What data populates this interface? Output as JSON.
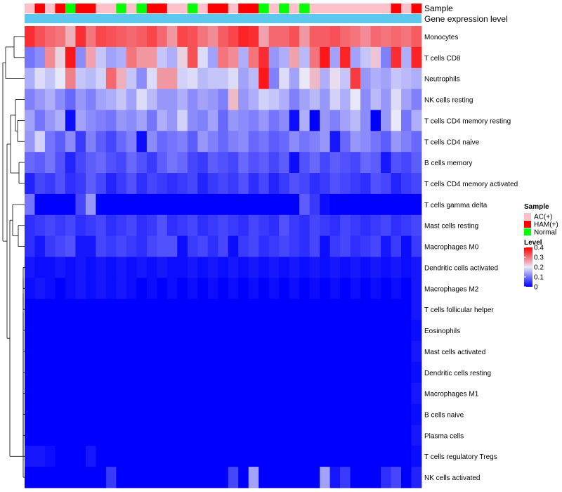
{
  "chart_data": {
    "type": "heatmap",
    "title": "",
    "annotation_tracks": [
      "Sample",
      "Gene expression level"
    ],
    "sample_groups": [
      "AC",
      "HAM",
      "AC",
      "HAM",
      "Normal",
      "HAM",
      "HAM",
      "AC",
      "AC",
      "Normal",
      "AC",
      "Normal",
      "HAM",
      "HAM",
      "AC",
      "AC",
      "Normal",
      "AC",
      "HAM",
      "HAM",
      "AC",
      "HAM",
      "HAM",
      "Normal",
      "AC",
      "Normal",
      "AC",
      "Normal",
      "AC",
      "AC",
      "AC",
      "AC",
      "AC",
      "AC",
      "AC",
      "AC",
      "HAM",
      "AC",
      "HAM"
    ],
    "rows": [
      "Monocytes",
      "T cells CD8",
      "Neutrophils",
      "NK cells resting",
      "T cells CD4 memory resting",
      "T cells CD4 naive",
      "B cells memory",
      "T cells CD4 memory activated",
      "T cells gamma delta",
      "Mast cells resting",
      "Macrophages M0",
      "Dendritic cells activated",
      "Macrophages M2",
      "T cells follicular helper",
      "Eosinophils",
      "Mast cells activated",
      "Dendritic cells resting",
      "Macrophages M1",
      "B cells naive",
      "Plasma cells",
      "T cells regulatory  Tregs",
      "NK cells activated"
    ],
    "values": [
      [
        0.36,
        0.33,
        0.31,
        0.3,
        0.25,
        0.36,
        0.3,
        0.34,
        0.33,
        0.32,
        0.31,
        0.32,
        0.34,
        0.31,
        0.27,
        0.34,
        0.33,
        0.3,
        0.28,
        0.32,
        0.34,
        0.37,
        0.36,
        0.26,
        0.31,
        0.31,
        0.33,
        0.27,
        0.32,
        0.32,
        0.33,
        0.31,
        0.3,
        0.28,
        0.31,
        0.3,
        0.31,
        0.3,
        0.32
      ],
      [
        0.1,
        0.12,
        0.28,
        0.22,
        0.38,
        0.12,
        0.26,
        0.17,
        0.14,
        0.15,
        0.3,
        0.27,
        0.27,
        0.17,
        0.15,
        0.22,
        0.33,
        0.19,
        0.14,
        0.3,
        0.28,
        0.15,
        0.3,
        0.36,
        0.13,
        0.15,
        0.26,
        0.16,
        0.3,
        0.38,
        0.14,
        0.37,
        0.14,
        0.17,
        0.23,
        0.11,
        0.36,
        0.15,
        0.37
      ],
      [
        0.15,
        0.19,
        0.17,
        0.2,
        0.29,
        0.17,
        0.16,
        0.18,
        0.31,
        0.25,
        0.17,
        0.12,
        0.19,
        0.27,
        0.27,
        0.18,
        0.19,
        0.16,
        0.17,
        0.17,
        0.19,
        0.14,
        0.16,
        0.38,
        0.11,
        0.19,
        0.14,
        0.2,
        0.24,
        0.15,
        0.21,
        0.17,
        0.35,
        0.13,
        0.15,
        0.14,
        0.17,
        0.16,
        0.15
      ],
      [
        0.11,
        0.13,
        0.15,
        0.12,
        0.09,
        0.13,
        0.11,
        0.14,
        0.15,
        0.17,
        0.14,
        0.19,
        0.16,
        0.13,
        0.13,
        0.15,
        0.12,
        0.14,
        0.13,
        0.11,
        0.24,
        0.13,
        0.15,
        0.18,
        0.17,
        0.15,
        0.11,
        0.14,
        0.16,
        0.13,
        0.18,
        0.15,
        0.2,
        0.12,
        0.16,
        0.13,
        0.19,
        0.14,
        0.11
      ],
      [
        0.14,
        0.1,
        0.13,
        0.15,
        0.01,
        0.14,
        0.12,
        0.11,
        0.1,
        0.13,
        0.12,
        0.14,
        0.1,
        0.15,
        0.13,
        0.18,
        0.12,
        0.11,
        0.14,
        0.09,
        0.13,
        0.12,
        0.11,
        0.13,
        0.1,
        0.12,
        0.01,
        0.15,
        0.0,
        0.13,
        0.11,
        0.14,
        0.16,
        0.12,
        0.0,
        0.13,
        0.2,
        0.1,
        0.15
      ],
      [
        0.13,
        0.18,
        0.1,
        0.08,
        0.12,
        0.05,
        0.11,
        0.08,
        0.06,
        0.09,
        0.11,
        0.01,
        0.12,
        0.09,
        0.1,
        0.11,
        0.08,
        0.13,
        0.11,
        0.09,
        0.11,
        0.12,
        0.09,
        0.1,
        0.08,
        0.09,
        0.12,
        0.1,
        0.11,
        0.13,
        0.02,
        0.09,
        0.13,
        0.12,
        0.1,
        0.08,
        0.13,
        0.11,
        0.09
      ],
      [
        0.09,
        0.08,
        0.1,
        0.07,
        0.03,
        0.06,
        0.08,
        0.09,
        0.07,
        0.06,
        0.09,
        0.07,
        0.05,
        0.08,
        0.1,
        0.09,
        0.06,
        0.05,
        0.08,
        0.07,
        0.06,
        0.09,
        0.07,
        0.08,
        0.06,
        0.08,
        0.01,
        0.07,
        0.09,
        0.06,
        0.08,
        0.07,
        0.06,
        0.09,
        0.08,
        0.02,
        0.07,
        0.06,
        0.08
      ],
      [
        0.03,
        0.06,
        0.05,
        0.07,
        0.04,
        0.05,
        0.08,
        0.06,
        0.03,
        0.05,
        0.07,
        0.04,
        0.06,
        0.05,
        0.04,
        0.05,
        0.06,
        0.03,
        0.05,
        0.06,
        0.05,
        0.07,
        0.04,
        0.06,
        0.03,
        0.05,
        0.07,
        0.06,
        0.04,
        0.05,
        0.07,
        0.06,
        0.05,
        0.04,
        0.07,
        0.06,
        0.03,
        0.05,
        0.06
      ],
      [
        0.1,
        0.0,
        0.0,
        0.0,
        0.0,
        0.06,
        0.13,
        0.0,
        0.0,
        0.0,
        0.0,
        0.0,
        0.0,
        0.0,
        0.0,
        0.0,
        0.0,
        0.0,
        0.0,
        0.0,
        0.0,
        0.0,
        0.0,
        0.0,
        0.0,
        0.0,
        0.0,
        0.08,
        0.05,
        0.01,
        0.0,
        0.0,
        0.0,
        0.0,
        0.0,
        0.0,
        0.0,
        0.0,
        0.0
      ],
      [
        0.04,
        0.05,
        0.06,
        0.05,
        0.06,
        0.04,
        0.05,
        0.06,
        0.04,
        0.05,
        0.06,
        0.04,
        0.05,
        0.07,
        0.04,
        0.05,
        0.06,
        0.04,
        0.05,
        0.06,
        0.05,
        0.04,
        0.06,
        0.05,
        0.04,
        0.07,
        0.05,
        0.04,
        0.06,
        0.05,
        0.04,
        0.06,
        0.05,
        0.04,
        0.05,
        0.06,
        0.04,
        0.05,
        0.06
      ],
      [
        0.04,
        0.02,
        0.05,
        0.06,
        0.07,
        0.02,
        0.02,
        0.06,
        0.05,
        0.06,
        0.05,
        0.04,
        0.06,
        0.07,
        0.07,
        0.01,
        0.05,
        0.06,
        0.04,
        0.06,
        0.01,
        0.05,
        0.06,
        0.04,
        0.05,
        0.06,
        0.05,
        0.04,
        0.06,
        0.01,
        0.05,
        0.06,
        0.04,
        0.05,
        0.06,
        0.02,
        0.05,
        0.01,
        0.05
      ],
      [
        0.02,
        0.01,
        0.01,
        0.02,
        0.01,
        0.02,
        0.01,
        0.02,
        0.01,
        0.02,
        0.01,
        0.02,
        0.01,
        0.02,
        0.01,
        0.01,
        0.02,
        0.01,
        0.02,
        0.01,
        0.02,
        0.01,
        0.02,
        0.01,
        0.02,
        0.01,
        0.02,
        0.01,
        0.02,
        0.01,
        0.02,
        0.01,
        0.02,
        0.01,
        0.02,
        0.01,
        0.02,
        0.01,
        0.02
      ],
      [
        0.01,
        0.02,
        0.01,
        0.0,
        0.01,
        0.02,
        0.01,
        0.02,
        0.01,
        0.02,
        0.01,
        0.0,
        0.01,
        0.0,
        0.01,
        0.0,
        0.01,
        0.0,
        0.01,
        0.0,
        0.01,
        0.0,
        0.01,
        0.0,
        0.01,
        0.0,
        0.01,
        0.0,
        0.01,
        0.0,
        0.01,
        0.0,
        0.01,
        0.0,
        0.01,
        0.0,
        0.01,
        0.0,
        0.02
      ],
      [
        0.0,
        0.0,
        0.0,
        0.0,
        0.0,
        0.0,
        0.0,
        0.0,
        0.0,
        0.0,
        0.0,
        0.0,
        0.0,
        0.0,
        0.0,
        0.0,
        0.0,
        0.0,
        0.0,
        0.0,
        0.0,
        0.0,
        0.0,
        0.0,
        0.0,
        0.0,
        0.0,
        0.0,
        0.0,
        0.0,
        0.0,
        0.0,
        0.0,
        0.0,
        0.0,
        0.0,
        0.0,
        0.0,
        0.02
      ],
      [
        0.0,
        0.0,
        0.0,
        0.0,
        0.0,
        0.0,
        0.0,
        0.0,
        0.0,
        0.0,
        0.0,
        0.0,
        0.0,
        0.0,
        0.0,
        0.0,
        0.0,
        0.0,
        0.0,
        0.0,
        0.0,
        0.0,
        0.0,
        0.0,
        0.0,
        0.0,
        0.0,
        0.0,
        0.0,
        0.0,
        0.0,
        0.0,
        0.0,
        0.0,
        0.0,
        0.0,
        0.0,
        0.0,
        0.01
      ],
      [
        0.0,
        0.0,
        0.0,
        0.0,
        0.0,
        0.0,
        0.0,
        0.0,
        0.0,
        0.0,
        0.0,
        0.0,
        0.0,
        0.0,
        0.0,
        0.0,
        0.0,
        0.0,
        0.0,
        0.0,
        0.0,
        0.0,
        0.0,
        0.0,
        0.0,
        0.0,
        0.0,
        0.0,
        0.0,
        0.0,
        0.0,
        0.0,
        0.0,
        0.0,
        0.0,
        0.0,
        0.0,
        0.0,
        0.02
      ],
      [
        0.0,
        0.0,
        0.0,
        0.0,
        0.0,
        0.0,
        0.0,
        0.0,
        0.0,
        0.0,
        0.0,
        0.0,
        0.0,
        0.0,
        0.0,
        0.0,
        0.0,
        0.0,
        0.0,
        0.0,
        0.0,
        0.0,
        0.0,
        0.0,
        0.0,
        0.0,
        0.0,
        0.0,
        0.0,
        0.0,
        0.0,
        0.0,
        0.0,
        0.0,
        0.0,
        0.0,
        0.0,
        0.0,
        0.01
      ],
      [
        0.0,
        0.0,
        0.0,
        0.0,
        0.0,
        0.0,
        0.0,
        0.0,
        0.0,
        0.0,
        0.0,
        0.0,
        0.0,
        0.0,
        0.0,
        0.0,
        0.0,
        0.0,
        0.0,
        0.0,
        0.0,
        0.0,
        0.0,
        0.0,
        0.0,
        0.0,
        0.0,
        0.0,
        0.0,
        0.0,
        0.0,
        0.0,
        0.0,
        0.0,
        0.0,
        0.0,
        0.0,
        0.0,
        0.02
      ],
      [
        0.0,
        0.0,
        0.0,
        0.0,
        0.0,
        0.0,
        0.0,
        0.0,
        0.0,
        0.0,
        0.0,
        0.0,
        0.0,
        0.0,
        0.0,
        0.0,
        0.0,
        0.0,
        0.0,
        0.0,
        0.0,
        0.0,
        0.0,
        0.0,
        0.0,
        0.0,
        0.0,
        0.0,
        0.0,
        0.0,
        0.0,
        0.0,
        0.0,
        0.0,
        0.0,
        0.0,
        0.0,
        0.0,
        0.01
      ],
      [
        0.0,
        0.0,
        0.0,
        0.0,
        0.0,
        0.0,
        0.0,
        0.0,
        0.0,
        0.0,
        0.0,
        0.0,
        0.0,
        0.0,
        0.0,
        0.0,
        0.0,
        0.0,
        0.0,
        0.0,
        0.0,
        0.0,
        0.0,
        0.0,
        0.0,
        0.0,
        0.0,
        0.0,
        0.0,
        0.0,
        0.0,
        0.0,
        0.0,
        0.0,
        0.0,
        0.0,
        0.0,
        0.0,
        0.02
      ],
      [
        0.02,
        0.02,
        0.01,
        0.0,
        0.0,
        0.0,
        0.02,
        0.0,
        0.0,
        0.0,
        0.0,
        0.0,
        0.0,
        0.0,
        0.0,
        0.0,
        0.0,
        0.0,
        0.0,
        0.0,
        0.0,
        0.0,
        0.0,
        0.0,
        0.0,
        0.0,
        0.0,
        0.0,
        0.0,
        0.0,
        0.0,
        0.0,
        0.0,
        0.0,
        0.0,
        0.0,
        0.0,
        0.0,
        0.01
      ],
      [
        0.0,
        0.0,
        0.0,
        0.0,
        0.0,
        0.0,
        0.0,
        0.0,
        0.05,
        0.0,
        0.0,
        0.0,
        0.0,
        0.0,
        0.0,
        0.0,
        0.0,
        0.0,
        0.0,
        0.0,
        0.06,
        0.0,
        0.14,
        0.0,
        0.0,
        0.0,
        0.0,
        0.0,
        0.0,
        0.14,
        0.02,
        0.05,
        0.0,
        0.0,
        0.0,
        0.04,
        0.06,
        0.0,
        0.03
      ]
    ],
    "legend": {
      "sample_title": "Sample",
      "sample_items": [
        {
          "key": "AC",
          "label": "AC(+)",
          "color": "#ffc0cb"
        },
        {
          "key": "HAM",
          "label": "HAM(+)",
          "color": "#ff0000"
        },
        {
          "key": "Normal",
          "label": "Normal",
          "color": "#00ff00"
        }
      ],
      "level_title": "Level",
      "level_ticks": [
        0.4,
        0.3,
        0.2,
        0.1,
        0
      ],
      "level_range": [
        0,
        0.4
      ]
    },
    "colors": {
      "low": "#0000ff",
      "mid": "#e8e8f8",
      "high": "#ff0000",
      "gene_expression_track": "#5bc8f0"
    }
  }
}
